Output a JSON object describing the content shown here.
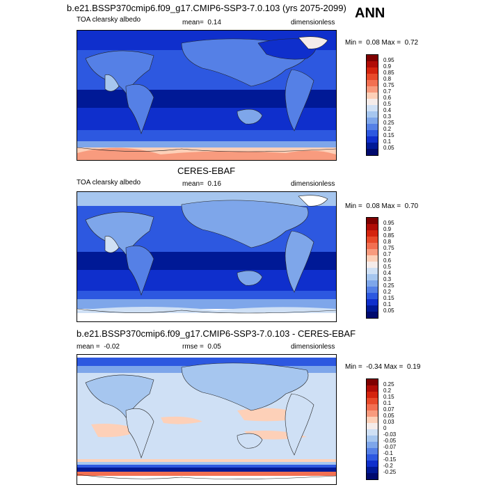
{
  "figure": {
    "title": "b.e21.BSSP370cmip6.f09_g17.CMIP6-SSP3-7.0.103 (yrs 2075-2099)",
    "season": "ANN"
  },
  "chart_data": [
    {
      "type": "heatmap",
      "title": "b.e21.BSSP370cmip6.f09_g17.CMIP6-SSP3-7.0.103 (yrs 2075-2099)",
      "variable": "TOA clearsky albedo",
      "mean_label": "mean=",
      "mean": "0.14",
      "units": "dimensionless",
      "min_label": "Min =",
      "min": "0.08",
      "max_label": "Max =",
      "max": "0.72",
      "colorbar_levels": [
        "0.95",
        "0.9",
        "0.85",
        "0.8",
        "0.75",
        "0.7",
        "0.6",
        "0.5",
        "0.4",
        "0.3",
        "0.25",
        "0.2",
        "0.15",
        "0.1",
        "0.05"
      ],
      "colors": [
        "#7f0000",
        "#b00c06",
        "#d4240e",
        "#e84a2a",
        "#f27052",
        "#f89b7e",
        "#fdd0b8",
        "#f5ecea",
        "#cfe0f5",
        "#a6c6ef",
        "#7ea6ea",
        "#5580e6",
        "#2d58e0",
        "#0f2fcc",
        "#001996",
        "#000a6e"
      ]
    },
    {
      "type": "heatmap",
      "title": "CERES-EBAF",
      "variable": "TOA clearsky albedo",
      "mean_label": "mean=",
      "mean": "0.16",
      "units": "dimensionless",
      "min_label": "Min =",
      "min": "0.08",
      "max_label": "Max =",
      "max": "0.70",
      "colorbar_levels": [
        "0.95",
        "0.9",
        "0.85",
        "0.8",
        "0.75",
        "0.7",
        "0.6",
        "0.5",
        "0.4",
        "0.3",
        "0.25",
        "0.2",
        "0.15",
        "0.1",
        "0.05"
      ],
      "colors": [
        "#7f0000",
        "#b00c06",
        "#d4240e",
        "#e84a2a",
        "#f27052",
        "#f89b7e",
        "#fdd0b8",
        "#f5ecea",
        "#cfe0f5",
        "#a6c6ef",
        "#7ea6ea",
        "#5580e6",
        "#2d58e0",
        "#0f2fcc",
        "#001996",
        "#000a6e"
      ]
    },
    {
      "type": "heatmap",
      "title": "b.e21.BSSP370cmip6.f09_g17.CMIP6-SSP3-7.0.103 - CERES-EBAF",
      "mean_label": "mean =",
      "mean": "-0.02",
      "rmse_label": "rmse =",
      "rmse": "0.05",
      "units": "dimensionless",
      "min_label": "Min =",
      "min": "-0.34",
      "max_label": "Max =",
      "max": "0.19",
      "colorbar_levels": [
        "0.25",
        "0.2",
        "0.15",
        "0.1",
        "0.07",
        "0.05",
        "0.03",
        "0",
        "-0.03",
        "-0.05",
        "-0.07",
        "-0.1",
        "-0.15",
        "-0.2",
        "-0.25"
      ],
      "colors": [
        "#7f0000",
        "#b00c06",
        "#d4240e",
        "#e84a2a",
        "#f27052",
        "#f89b7e",
        "#fdd0b8",
        "#f5ecea",
        "#cfe0f5",
        "#a6c6ef",
        "#7ea6ea",
        "#5580e6",
        "#2d58e0",
        "#0f2fcc",
        "#001996",
        "#000a6e"
      ]
    }
  ]
}
